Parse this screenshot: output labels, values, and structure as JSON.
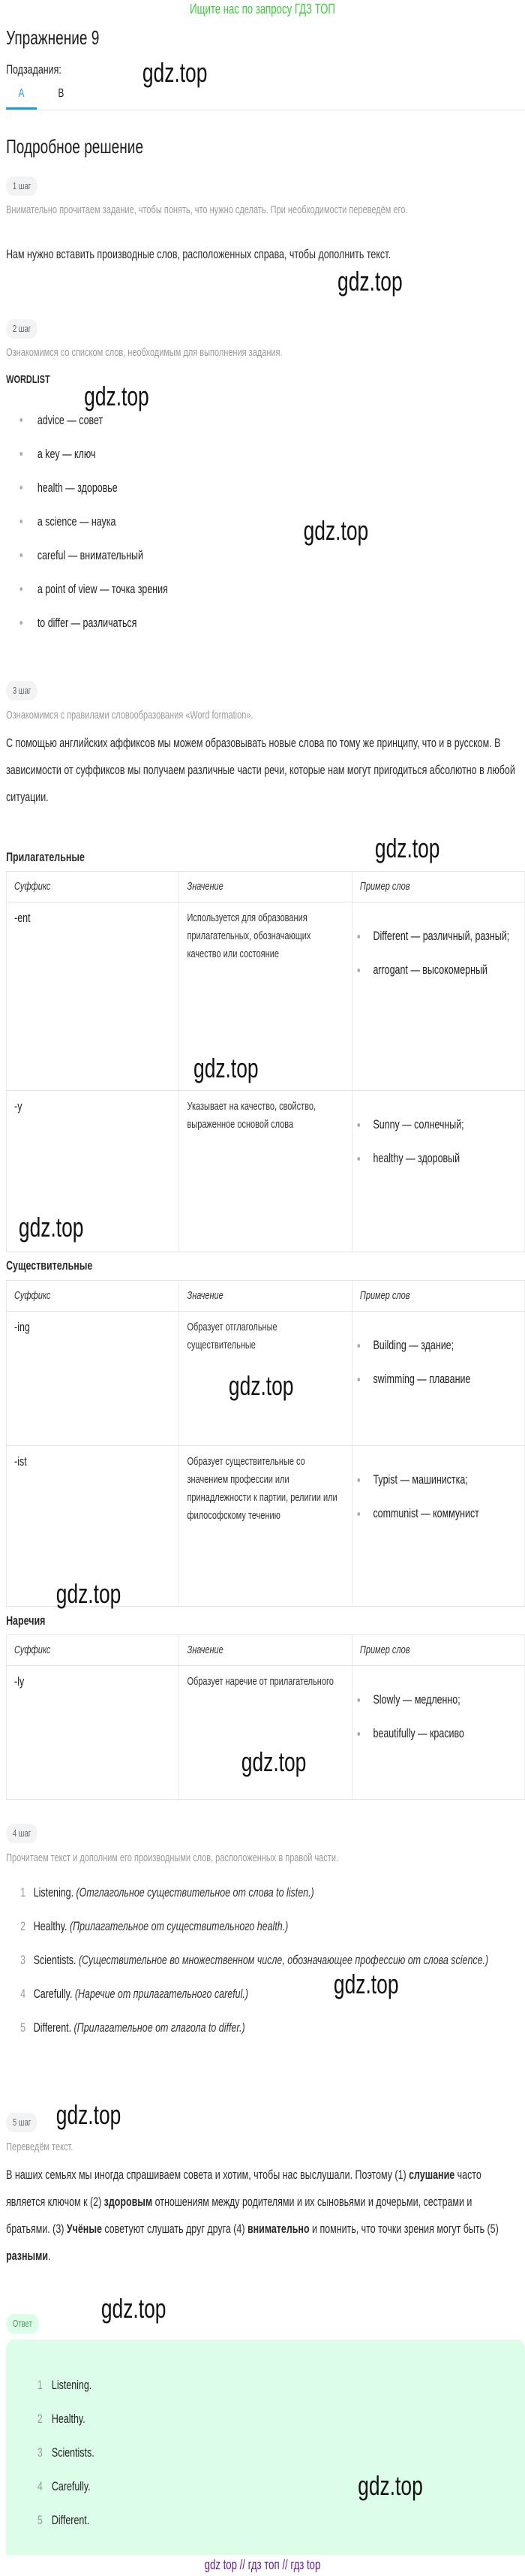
{
  "banner": "Ищите нас по запросу ГДЗ ТОП",
  "title": "Упражнение 9",
  "subtasks_label": "Подзадания:",
  "tabs": [
    {
      "label": "A",
      "active": true
    },
    {
      "label": "B",
      "active": false
    }
  ],
  "solution_title": "Подробное решение",
  "colors": {
    "accent": "#1a9be6",
    "banner": "#3ccc3c",
    "answer_bg": "#dcfde8",
    "footer": "#5b1f8c"
  },
  "watermark": "gdz.top",
  "step1": {
    "badge": "1 шаг",
    "hint": "Внимательно прочитаем задание, чтобы понять, что нужно сделать. При необходимости переведём его.",
    "text": "Нам нужно вставить производные слов, расположенных справа, чтобы дополнить текст."
  },
  "step2": {
    "badge": "2 шаг",
    "hint": "Ознакомимся со списком слов, необходимым для выполнения задания.",
    "heading": "WORDLIST",
    "words": [
      "advice — совет",
      "a key — ключ",
      "health — здоровье",
      "a science — наука",
      "careful — внимательный",
      "a point of view — точка зрения",
      "to differ — различаться"
    ]
  },
  "step3": {
    "badge": "3 шаг",
    "hint": "Ознакомимся с правилами словообразования «Word formation».",
    "text": "С помощью английских аффиксов мы можем образовывать новые слова по тому же принципу, что и в русском. В зависимости от суффиксов мы получаем различные части речи, которые нам могут пригодиться абсолютно в любой ситуации.",
    "headers": [
      "Суффикс",
      "Значение",
      "Пример слов"
    ],
    "tables": [
      {
        "title": "Прилагательные",
        "rows": [
          {
            "suffix": "-ent",
            "meaning": "Используется для образования прилагательных, обозначающих качество или состояние",
            "examples": [
              "Different — различный, разный;",
              "arrogant — высокомерный"
            ]
          },
          {
            "suffix": "-y",
            "meaning": "Указывает на качество, свойство, выраженное основой слова",
            "examples": [
              "Sunny — солнечный;",
              "healthy — здоровый"
            ]
          }
        ]
      },
      {
        "title": "Существительные",
        "rows": [
          {
            "suffix": "-ing",
            "meaning": "Образует отглагольные существительные",
            "examples": [
              "Building — здание;",
              "swimming — плавание"
            ]
          },
          {
            "suffix": "-ist",
            "meaning": "Образует существительные со значением профессии или принадлежности к партии, религии или философскому течению",
            "examples": [
              "Typist — машинистка;",
              "communist — коммунист"
            ]
          }
        ]
      },
      {
        "title": "Наречия",
        "rows": [
          {
            "suffix": "-ly",
            "meaning": "Образует наречие от прилагательного",
            "examples": [
              "Slowly — медленно;",
              "beautifully — красиво"
            ]
          }
        ]
      }
    ]
  },
  "step4": {
    "badge": "4 шаг",
    "hint": "Прочитаем текст и дополним его производными слов, расположенных в правой части.",
    "items": [
      {
        "num": "1",
        "answer": "Listening.",
        "note": "(Отглагольное существительное от слова to listen.)"
      },
      {
        "num": "2",
        "answer": "Healthy.",
        "note": "(Прилагательное от существительного health.)"
      },
      {
        "num": "3",
        "answer": "Scientists.",
        "note": "(Существительное во множественном числе, обозначающее профессию от слова science.)"
      },
      {
        "num": "4",
        "answer": "Carefully.",
        "note": "(Наречие от прилагательного careful.)"
      },
      {
        "num": "5",
        "answer": "Different.",
        "note": "(Прилагательное от глагола to differ.)"
      }
    ]
  },
  "step5": {
    "badge": "5 шаг",
    "hint": "Переведём текст.",
    "segments": [
      {
        "text": "В наших семьях мы иногда спрашиваем совета и хотим, чтобы нас выслушали. Поэтому (1) ",
        "bold": false
      },
      {
        "text": "слушание",
        "bold": true
      },
      {
        "text": " часто является ключом к (2) ",
        "bold": false
      },
      {
        "text": "здоровым",
        "bold": true
      },
      {
        "text": " отношениям между родителями и их сыновьями и дочерьми, сестрами и братьями. (3) ",
        "bold": false
      },
      {
        "text": "Учёные",
        "bold": true
      },
      {
        "text": " советуют слушать друг друга (4) ",
        "bold": false
      },
      {
        "text": "внимательно",
        "bold": true
      },
      {
        "text": " и помнить, что точки зрения могут быть (5) ",
        "bold": false
      },
      {
        "text": "разными",
        "bold": true
      },
      {
        "text": ".",
        "bold": false
      }
    ]
  },
  "answer": {
    "badge": "Ответ",
    "items": [
      {
        "num": "1",
        "text": "Listening."
      },
      {
        "num": "2",
        "text": "Healthy."
      },
      {
        "num": "3",
        "text": "Scientists."
      },
      {
        "num": "4",
        "text": "Carefully."
      },
      {
        "num": "5",
        "text": "Different."
      }
    ]
  },
  "footer": {
    "links": [
      "gdz top",
      "гдз топ",
      "гдз top"
    ],
    "separator": "//"
  }
}
